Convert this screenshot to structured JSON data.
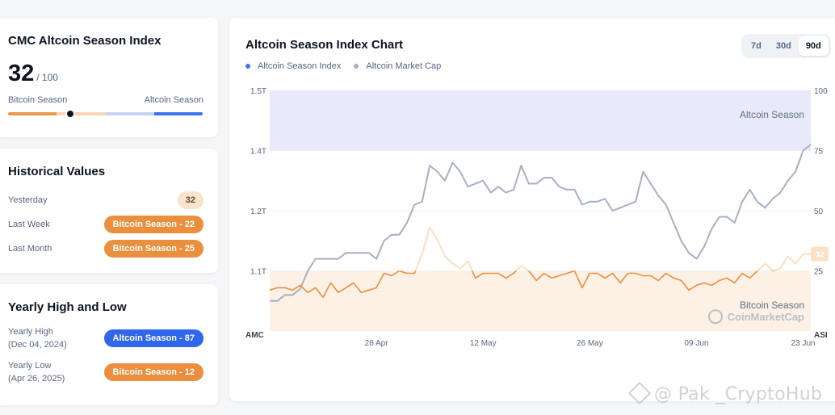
{
  "index_card": {
    "title": "CMC Altcoin Season Index",
    "value": "32",
    "max": "/ 100",
    "left_label": "Bitcoin Season",
    "right_label": "Altcoin Season",
    "position": 32
  },
  "historical": {
    "title": "Historical Values",
    "rows": [
      {
        "label": "Yesterday",
        "value": "32"
      },
      {
        "label": "Last Week",
        "value": "Bitcoin Season - 22"
      },
      {
        "label": "Last Month",
        "value": "Bitcoin Season - 25"
      }
    ]
  },
  "yearly": {
    "title": "Yearly High and Low",
    "high_label": "Yearly High",
    "high_date": "(Dec 04, 2024)",
    "high_value": "Altcoin Season - 87",
    "low_label": "Yearly Low",
    "low_date": "(Apr 26, 2025)",
    "low_value": "Bitcoin Season - 12"
  },
  "chart": {
    "title": "Altcoin Season Index Chart",
    "tabs": [
      "7d",
      "30d",
      "90d"
    ],
    "active_tab": "90d",
    "current_value_label": "32",
    "colors": {
      "index_line": "#ea8f3d",
      "market_cap_line": "#a6b0c3",
      "altcoin_zone": "#e8eafc",
      "bitcoin_zone": "#fdf1e5",
      "index_dot": "#3d73eb",
      "mcap_dot": "#a6b0c3"
    }
  },
  "watermark": {
    "text": "@ Pak _CryptoHub"
  },
  "chart_data": {
    "type": "line",
    "legend": [
      "Altcoin Season Index",
      "Altcoin Market Cap"
    ],
    "left_axis_label": "AMC",
    "right_axis_label": "ASI",
    "left_ticks": [
      "1.5T",
      "1.4T",
      "1.2T",
      "1.1T"
    ],
    "left_tick_values": [
      1.5,
      1.4,
      1.2,
      1.1
    ],
    "right_ticks": [
      "100",
      "75",
      "50",
      "25"
    ],
    "right_tick_values": [
      100,
      75,
      50,
      25
    ],
    "x_ticks": [
      "28 Apr",
      "12 May",
      "26 May",
      "09 Jun",
      "23 Jun"
    ],
    "x_tick_positions": [
      14,
      28,
      42,
      56,
      70
    ],
    "zones": [
      {
        "label": "Altcoin Season",
        "from": 75,
        "to": 100
      },
      {
        "label": "Bitcoin Season",
        "from": 0,
        "to": 25
      }
    ],
    "watermark": "CoinMarketCap",
    "ylim_left": [
      1.0,
      1.5
    ],
    "ylim_right": [
      0,
      100
    ],
    "series": [
      {
        "name": "Altcoin Market Cap",
        "axis": "left",
        "values": [
          1.05,
          1.05,
          1.06,
          1.06,
          1.07,
          1.1,
          1.12,
          1.12,
          1.12,
          1.12,
          1.13,
          1.13,
          1.13,
          1.13,
          1.12,
          1.15,
          1.16,
          1.16,
          1.18,
          1.22,
          1.23,
          1.35,
          1.33,
          1.3,
          1.36,
          1.33,
          1.28,
          1.29,
          1.3,
          1.26,
          1.28,
          1.26,
          1.27,
          1.35,
          1.29,
          1.29,
          1.31,
          1.31,
          1.28,
          1.27,
          1.27,
          1.22,
          1.23,
          1.23,
          1.24,
          1.2,
          1.21,
          1.22,
          1.23,
          1.33,
          1.29,
          1.25,
          1.22,
          1.18,
          1.15,
          1.13,
          1.12,
          1.14,
          1.17,
          1.19,
          1.19,
          1.18,
          1.23,
          1.27,
          1.23,
          1.21,
          1.24,
          1.26,
          1.3,
          1.33,
          1.4,
          1.41
        ]
      },
      {
        "name": "Altcoin Season Index",
        "axis": "right",
        "values": [
          17,
          18,
          18,
          17,
          19,
          16,
          18,
          14,
          20,
          16,
          18,
          20,
          16,
          17,
          18,
          24,
          23,
          25,
          24,
          24,
          32,
          43,
          38,
          31,
          28,
          26,
          29,
          22,
          24,
          24,
          24,
          22,
          24,
          27,
          25,
          21,
          24,
          22,
          23,
          24,
          25,
          18,
          24,
          24,
          22,
          24,
          20,
          24,
          24,
          23,
          23,
          21,
          24,
          22,
          21,
          17,
          19,
          20,
          19,
          21,
          22,
          20,
          24,
          22,
          25,
          28,
          25,
          26,
          31,
          28,
          32,
          32
        ]
      }
    ]
  }
}
